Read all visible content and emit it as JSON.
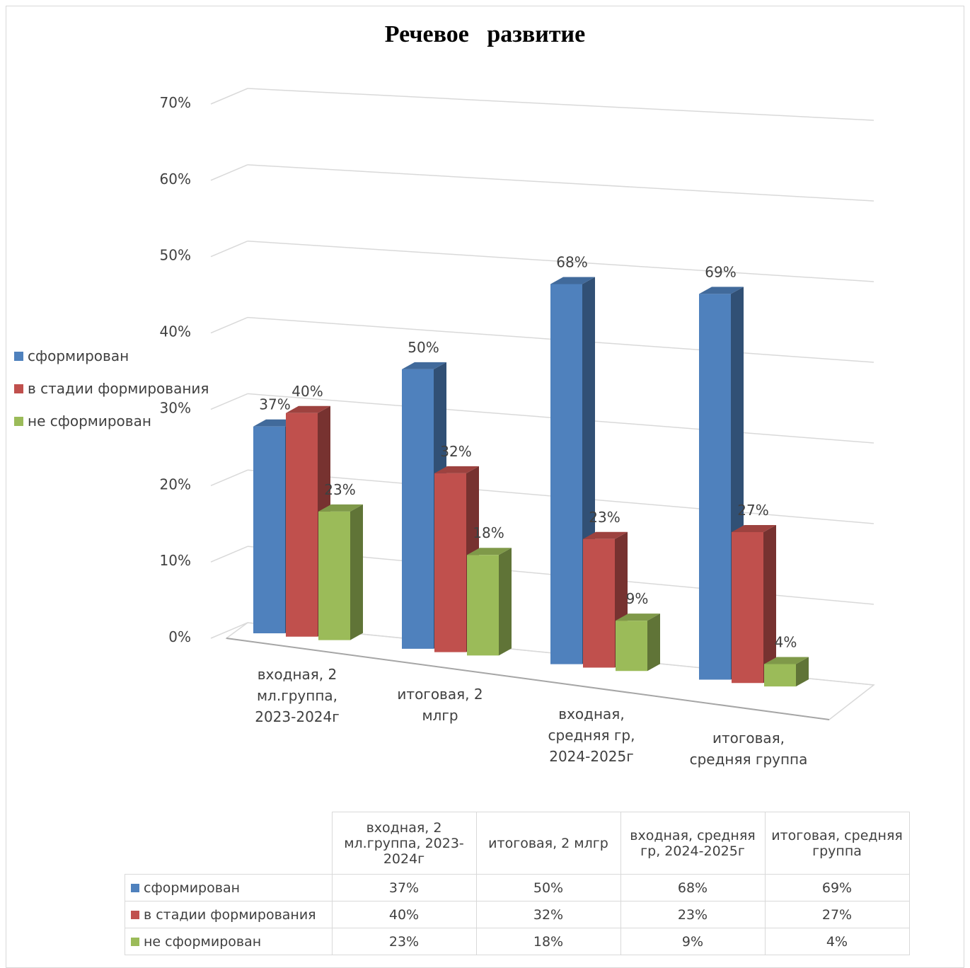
{
  "chart_data": {
    "type": "bar",
    "title": "Речевое   развитие",
    "categories": [
      "входная, 2 мл.группа, 2023-2024г",
      "итоговая, 2 млгр",
      "входная, средняя гр, 2024-2025г",
      "итоговая, средняя группа"
    ],
    "category_lines": [
      [
        "входная, 2",
        "мл.группа,",
        "2023-2024г"
      ],
      [
        "итоговая, 2",
        "млгр"
      ],
      [
        "входная,",
        "средняя гр,",
        "2024-2025г"
      ],
      [
        "итоговая,",
        "средняя группа"
      ]
    ],
    "table_headers": [
      [
        "входная, 2",
        "мл.группа, 2023-",
        "2024г"
      ],
      [
        "итоговая, 2 млгр"
      ],
      [
        "входная, средняя",
        "гр, 2024-2025г"
      ],
      [
        "итоговая, средняя",
        "группа"
      ]
    ],
    "series": [
      {
        "name": "сформирован",
        "color": "#4f81bd",
        "values": [
          37,
          50,
          68,
          69
        ],
        "labels": [
          "37%",
          "50%",
          "68%",
          "69%"
        ]
      },
      {
        "name": "в стадии формирования",
        "color": "#c0504d",
        "values": [
          40,
          32,
          23,
          27
        ],
        "labels": [
          "40%",
          "32%",
          "23%",
          "27%"
        ]
      },
      {
        "name": "не сформирован",
        "color": "#9bbb59",
        "values": [
          23,
          18,
          9,
          4
        ],
        "labels": [
          "23%",
          "18%",
          "9%",
          "4%"
        ]
      }
    ],
    "yticks": [
      "0%",
      "10%",
      "20%",
      "30%",
      "40%",
      "50%",
      "60%",
      "70%"
    ],
    "ylim": [
      0,
      70
    ],
    "legend_position": "left",
    "grid": true,
    "data_table": true
  }
}
